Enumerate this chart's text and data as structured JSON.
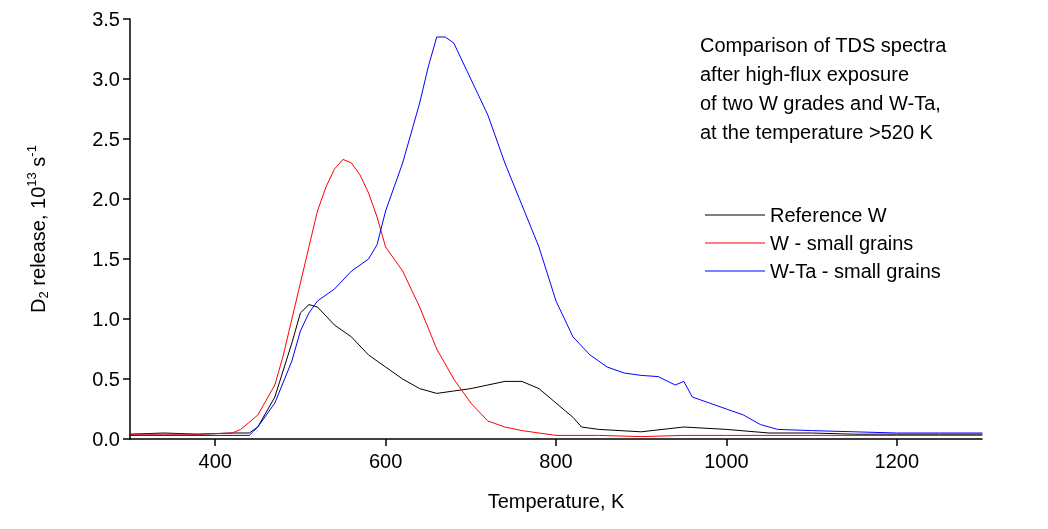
{
  "chart_data": {
    "type": "line",
    "xlabel": "Temperature, K",
    "ylabel": "D$_{2}$ release, 10$^{13}$ s$^{-1}$",
    "annotations": [
      "Comparison of TDS spectra\nafter high-flux exposure\nof two W grades and W-Ta,\nat the temperature >520 K"
    ],
    "xlim": [
      300,
      1300
    ],
    "xticks": [
      400,
      600,
      800,
      1000,
      1200
    ],
    "ylim": [
      0,
      3.5
    ],
    "yticks": [
      {
        "value": 0,
        "label": "0.0"
      },
      0.5,
      {
        "value": 1,
        "label": "1.0"
      },
      1.5,
      {
        "value": 2,
        "label": "2.0"
      },
      2.5,
      {
        "value": 3,
        "label": "3.0"
      },
      3.5
    ],
    "grid": false,
    "legend": "right",
    "marker": "none",
    "line_style": "solid",
    "series": [
      {
        "name": "Reference W",
        "color": "#000000",
        "x": [
          300,
          340,
          380,
          420,
          440,
          450,
          470,
          490,
          500,
          510,
          520,
          540,
          560,
          580,
          600,
          620,
          640,
          660,
          680,
          700,
          720,
          740,
          760,
          780,
          800,
          820,
          830,
          850,
          900,
          950,
          1000,
          1050,
          1100,
          1150,
          1200,
          1250,
          1300
        ],
        "values": [
          0.04,
          0.05,
          0.04,
          0.05,
          0.05,
          0.1,
          0.35,
          0.8,
          1.05,
          1.12,
          1.1,
          0.95,
          0.85,
          0.7,
          0.6,
          0.5,
          0.42,
          0.38,
          0.4,
          0.42,
          0.45,
          0.48,
          0.48,
          0.42,
          0.3,
          0.18,
          0.1,
          0.08,
          0.06,
          0.1,
          0.08,
          0.05,
          0.05,
          0.04,
          0.04,
          0.04,
          0.04
        ]
      },
      {
        "name": "W - small grains",
        "color": "#ff0000",
        "x": [
          300,
          340,
          380,
          420,
          430,
          450,
          470,
          480,
          490,
          500,
          510,
          520,
          530,
          540,
          550,
          560,
          570,
          580,
          590,
          600,
          620,
          640,
          660,
          680,
          700,
          720,
          740,
          760,
          780,
          800,
          850,
          900,
          950,
          1000,
          1050,
          1100,
          1150,
          1200,
          1250,
          1300
        ],
        "values": [
          0.04,
          0.04,
          0.04,
          0.05,
          0.08,
          0.2,
          0.45,
          0.7,
          1.0,
          1.3,
          1.6,
          1.9,
          2.1,
          2.25,
          2.33,
          2.3,
          2.2,
          2.05,
          1.85,
          1.6,
          1.4,
          1.1,
          0.75,
          0.5,
          0.3,
          0.15,
          0.1,
          0.07,
          0.05,
          0.03,
          0.03,
          0.02,
          0.03,
          0.03,
          0.03,
          0.03,
          0.03,
          0.03,
          0.03,
          0.03
        ]
      },
      {
        "name": "W-Ta - small grains",
        "color": "#0000ff",
        "x": [
          300,
          340,
          380,
          420,
          440,
          450,
          470,
          490,
          500,
          510,
          520,
          540,
          560,
          580,
          590,
          600,
          610,
          620,
          640,
          650,
          660,
          670,
          680,
          690,
          700,
          720,
          740,
          760,
          780,
          800,
          820,
          840,
          860,
          880,
          900,
          920,
          940,
          950,
          960,
          980,
          1000,
          1020,
          1040,
          1060,
          1100,
          1150,
          1200,
          1250,
          1300
        ],
        "values": [
          0.03,
          0.03,
          0.03,
          0.03,
          0.03,
          0.1,
          0.3,
          0.65,
          0.9,
          1.05,
          1.15,
          1.25,
          1.4,
          1.5,
          1.62,
          1.9,
          2.1,
          2.3,
          2.8,
          3.1,
          3.35,
          3.35,
          3.3,
          3.15,
          3.0,
          2.7,
          2.3,
          1.95,
          1.6,
          1.15,
          0.85,
          0.7,
          0.6,
          0.55,
          0.53,
          0.52,
          0.45,
          0.48,
          0.35,
          0.3,
          0.25,
          0.2,
          0.12,
          0.08,
          0.07,
          0.06,
          0.05,
          0.05,
          0.05
        ]
      }
    ]
  }
}
